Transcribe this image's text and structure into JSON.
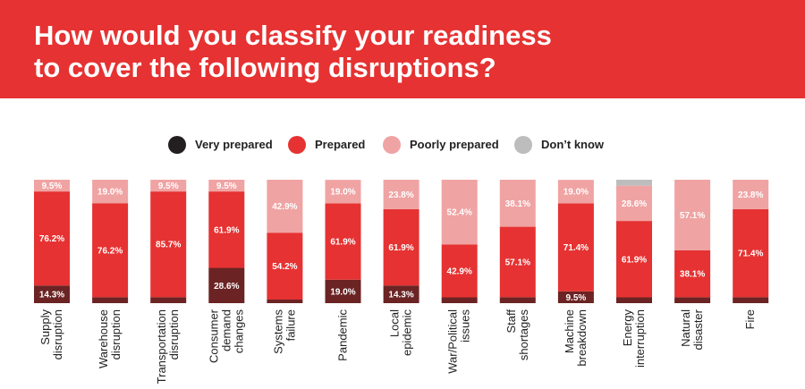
{
  "header": {
    "title_line1": "How would you classify your readiness",
    "title_line2": "to cover the following disruptions?"
  },
  "legend": [
    {
      "label": "Very prepared",
      "color": "#231f20"
    },
    {
      "label": "Prepared",
      "color": "#e63232"
    },
    {
      "label": "Poorly prepared",
      "color": "#f0a3a3"
    },
    {
      "label": "Don’t know",
      "color": "#bdbdbd"
    }
  ],
  "chart_data": {
    "type": "bar",
    "stacked": true,
    "orientation": "vertical",
    "ylim": [
      0,
      100
    ],
    "colors": {
      "Very prepared": "#6b2323",
      "Prepared": "#e63232",
      "Poorly prepared": "#f0a3a3",
      "Don’t know": "#bdbdbd"
    },
    "categories": [
      [
        "Supply",
        "disruption"
      ],
      [
        "Warehouse",
        "disruption"
      ],
      [
        "Transportation",
        "disruption"
      ],
      [
        "Consumer",
        "demand",
        "changes"
      ],
      [
        "Systems",
        "failure"
      ],
      [
        "Pandemic"
      ],
      [
        "Local",
        "epidemic"
      ],
      [
        "War/Political",
        "issues"
      ],
      [
        "Staff",
        "shortages"
      ],
      [
        "Machine",
        "breakdown"
      ],
      [
        "Energy",
        "interruption"
      ],
      [
        "Natural",
        "disaster"
      ],
      [
        "Fire"
      ]
    ],
    "series": [
      {
        "name": "Very prepared",
        "values": [
          14.3,
          4.8,
          4.8,
          28.6,
          2.9,
          19.0,
          14.3,
          4.7,
          4.8,
          9.5,
          4.7,
          4.8,
          4.8
        ],
        "labels": [
          "14.3%",
          "",
          "",
          "28.6%",
          "",
          "19.0%",
          "14.3%",
          "",
          "",
          "9.5%",
          "",
          "",
          ""
        ]
      },
      {
        "name": "Prepared",
        "values": [
          76.2,
          76.2,
          85.7,
          61.9,
          54.2,
          61.9,
          61.9,
          42.9,
          57.1,
          71.4,
          61.9,
          38.1,
          71.4
        ],
        "labels": [
          "76.2%",
          "76.2%",
          "85.7%",
          "61.9%",
          "54.2%",
          "61.9%",
          "61.9%",
          "42.9%",
          "57.1%",
          "71.4%",
          "61.9%",
          "38.1%",
          "71.4%"
        ]
      },
      {
        "name": "Poorly prepared",
        "values": [
          9.5,
          19.0,
          9.5,
          9.5,
          42.9,
          19.0,
          23.8,
          52.4,
          38.1,
          19.0,
          28.6,
          57.1,
          23.8
        ],
        "labels": [
          "9.5%",
          "19.0%",
          "9.5%",
          "9.5%",
          "42.9%",
          "19.0%",
          "23.8%",
          "52.4%",
          "38.1%",
          "19.0%",
          "28.6%",
          "57.1%",
          "23.8%"
        ]
      },
      {
        "name": "Don’t know",
        "values": [
          0,
          0,
          0,
          0,
          0,
          0,
          0,
          0,
          0,
          0,
          4.8,
          0,
          0
        ],
        "labels": [
          "",
          "",
          "",
          "",
          "",
          "",
          "",
          "",
          "",
          "",
          "",
          "",
          ""
        ]
      }
    ]
  }
}
